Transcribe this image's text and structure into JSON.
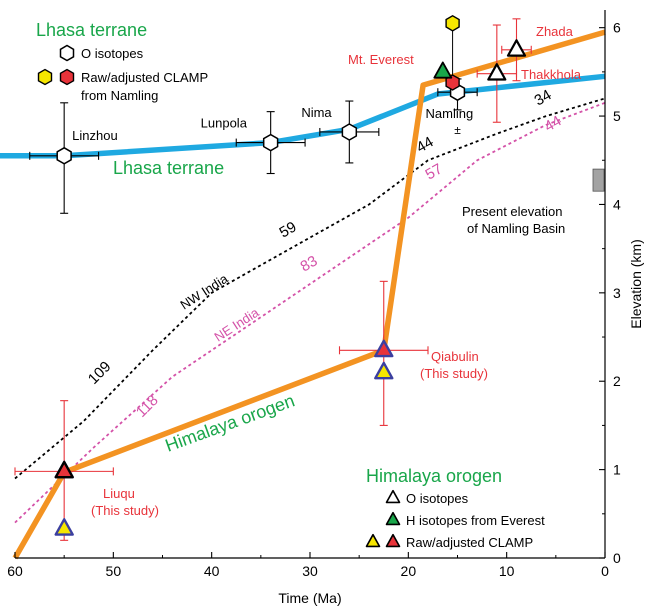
{
  "chart_data": {
    "type": "line",
    "xlabel": "Time (Ma)",
    "ylabel": "Elevation (km)",
    "xlim": [
      60,
      0
    ],
    "ylim": [
      0,
      6.2
    ],
    "x_ticks": [
      60,
      50,
      40,
      30,
      20,
      10,
      0
    ],
    "y_ticks": [
      0,
      1,
      2,
      3,
      4,
      5,
      6
    ],
    "grid": false,
    "colors": {
      "lhasa_line": "#1fa9e1",
      "himalaya_line": "#f39322",
      "nw_india": "#000000",
      "ne_india": "#d452a8",
      "error_bar": "#e8333a",
      "green_label": "#19a64a",
      "red_label": "#e8333a",
      "black_error": "#000000"
    },
    "series": [
      {
        "name": "Lhasa terrane",
        "style": "solid",
        "points": [
          [
            62,
            4.55
          ],
          [
            55,
            4.55
          ],
          [
            34,
            4.7
          ],
          [
            26,
            4.85
          ],
          [
            17,
            5.25
          ],
          [
            0,
            5.45
          ]
        ]
      },
      {
        "name": "Himalaya orogen",
        "style": "solid",
        "points": [
          [
            60,
            0
          ],
          [
            55,
            0.97
          ],
          [
            22.5,
            2.35
          ],
          [
            18.5,
            5.35
          ],
          [
            0,
            5.95
          ]
        ]
      },
      {
        "name": "NW India",
        "style": "dashed",
        "points": [
          [
            60,
            0.9
          ],
          [
            53,
            1.55
          ],
          [
            46,
            2.35
          ],
          [
            40,
            3.0
          ],
          [
            32,
            3.5
          ],
          [
            24,
            4.0
          ],
          [
            18,
            4.5
          ],
          [
            11,
            4.8
          ],
          [
            6,
            5.0
          ],
          [
            0,
            5.2
          ]
        ]
      },
      {
        "name": "NE India",
        "style": "dashed",
        "points": [
          [
            60,
            0.4
          ],
          [
            52,
            1.25
          ],
          [
            44,
            2.05
          ],
          [
            36,
            2.65
          ],
          [
            28,
            3.25
          ],
          [
            20,
            3.85
          ],
          [
            13,
            4.5
          ],
          [
            6,
            4.9
          ],
          [
            0,
            5.15
          ]
        ]
      }
    ],
    "line_labels": [
      {
        "text": "Lhasa terrane",
        "color": "green_label"
      },
      {
        "text": "Himalaya orogen",
        "color": "green_label"
      },
      {
        "text": "NW India",
        "color": "nw_india"
      },
      {
        "text": "NE India",
        "color": "ne_india"
      }
    ],
    "nw_age_labels": [
      "109",
      "59",
      "44",
      "34"
    ],
    "ne_age_labels": [
      "118",
      "83",
      "57",
      "44"
    ],
    "lhasa_points": [
      {
        "label": "Linzhou",
        "x": 55,
        "y": 4.55,
        "xerr": 3.5,
        "yerr": [
          0.65,
          0.6
        ]
      },
      {
        "label": "Lunpola",
        "x": 34,
        "y": 4.7,
        "xerr": 3.5,
        "yerr": [
          0.35,
          0.35
        ]
      },
      {
        "label": "Nima",
        "x": 26,
        "y": 4.82,
        "xerr": 3,
        "yerr": [
          0.35,
          0.35
        ]
      },
      {
        "label": "Namling",
        "x": 15,
        "y": 5.27,
        "xerr": 2,
        "yerr": [
          0.2,
          0.15
        ]
      }
    ],
    "namling_clamp": {
      "raw": 6.05,
      "adjusted": 5.38,
      "x": 15.5
    },
    "himalaya_o_isotopes": [
      {
        "label": "Zhada",
        "x": 9,
        "y": 5.75,
        "xerr": 1.5,
        "yerr": 0.35
      },
      {
        "label": "Thakkhola",
        "x": 11,
        "y": 5.48,
        "xerr": 2,
        "yerr": 0.55
      }
    ],
    "everest_h_isotope": {
      "label": "Mt. Everest",
      "x": 16.5,
      "y": 5.5
    },
    "clamp_points": [
      {
        "label": "Qiabulin",
        "sublabel": "(This study)",
        "x": 22.5,
        "raw": 2.1,
        "adjusted": 2.35,
        "xerr": 4.5,
        "yerr": [
          0.85,
          0.78
        ]
      },
      {
        "label": "Liuqu",
        "sublabel": "(This study)",
        "x": 55,
        "raw": 0.33,
        "adjusted": 0.98,
        "xerr": 5,
        "yerr": [
          0.78,
          0.8
        ]
      }
    ],
    "present_namling": {
      "label_line1": "Present elevation",
      "label_line2": "of Namling Basin",
      "y_min": 4.15,
      "y_max": 4.4
    },
    "legend_top": {
      "title": "Lhasa terrane",
      "entries": [
        "O isotopes",
        "Raw/adjusted CLAMP",
        "from Namling"
      ]
    },
    "legend_bottom": {
      "title": "Himalaya orogen",
      "entries": [
        "O isotopes",
        "H isotopes from Everest",
        "Raw/adjusted CLAMP"
      ]
    }
  }
}
